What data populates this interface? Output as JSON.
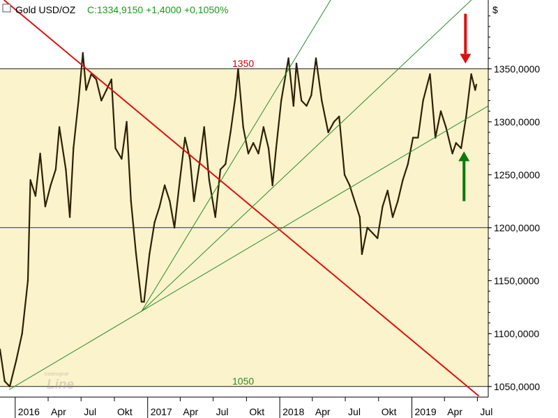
{
  "header": {
    "symbol": "Gold USD/OZ",
    "quote": "C:1334,9150 +1,4000 +0,1050%",
    "currency": "$",
    "logo_text": "Line",
    "logo_small": "tradesignal"
  },
  "chart_data": {
    "type": "line",
    "title": "Gold USD/OZ",
    "y_unit": "$",
    "ylim": [
      1040,
      1415
    ],
    "y_ticks": [
      "1350,0000",
      "1300,0000",
      "1250,0000",
      "1200,0000",
      "1150,0000",
      "1100,0000",
      "1050,0000"
    ],
    "y_tick_values": [
      1350,
      1300,
      1250,
      1200,
      1150,
      1100,
      1050
    ],
    "x_ticks": [
      "2016",
      "Apr",
      "Jul",
      "Okt",
      "2017",
      "Apr",
      "Jul",
      "Okt",
      "2018",
      "Apr",
      "Jul",
      "Okt",
      "2019",
      "Apr",
      "Jul"
    ],
    "x_tick_dates": [
      "2016-01-01",
      "2016-04-01",
      "2016-07-01",
      "2016-10-01",
      "2017-01-01",
      "2017-04-01",
      "2017-07-01",
      "2017-10-01",
      "2018-01-01",
      "2018-04-01",
      "2018-07-01",
      "2018-10-01",
      "2019-01-01",
      "2019-04-01",
      "2019-07-01"
    ],
    "x_range": [
      "2015-11-20",
      "2019-07-31"
    ],
    "band": {
      "low": 1050,
      "high": 1350,
      "color": "#fbf3cc"
    },
    "horizontal_lines": [
      {
        "value": 1350,
        "label": "1350",
        "label_color": "#cc0000"
      },
      {
        "value": 1200,
        "label": "",
        "label_color": "#1f1fa0"
      },
      {
        "value": 1050,
        "label": "1050",
        "label_color": "#2b8a2b"
      }
    ],
    "series": [
      {
        "color": "#2b2000",
        "points": [
          [
            "2015-11-20",
            1085
          ],
          [
            "2015-12-03",
            1055
          ],
          [
            "2015-12-17",
            1050
          ],
          [
            "2016-01-04",
            1075
          ],
          [
            "2016-01-20",
            1100
          ],
          [
            "2016-02-05",
            1150
          ],
          [
            "2016-02-12",
            1245
          ],
          [
            "2016-02-26",
            1230
          ],
          [
            "2016-03-10",
            1270
          ],
          [
            "2016-03-24",
            1220
          ],
          [
            "2016-04-08",
            1240
          ],
          [
            "2016-04-22",
            1255
          ],
          [
            "2016-05-02",
            1295
          ],
          [
            "2016-05-20",
            1255
          ],
          [
            "2016-05-31",
            1210
          ],
          [
            "2016-06-10",
            1275
          ],
          [
            "2016-06-24",
            1320
          ],
          [
            "2016-07-06",
            1365
          ],
          [
            "2016-07-15",
            1330
          ],
          [
            "2016-07-29",
            1345
          ],
          [
            "2016-08-12",
            1340
          ],
          [
            "2016-08-26",
            1320
          ],
          [
            "2016-09-09",
            1330
          ],
          [
            "2016-09-23",
            1340
          ],
          [
            "2016-10-04",
            1275
          ],
          [
            "2016-10-21",
            1265
          ],
          [
            "2016-11-04",
            1300
          ],
          [
            "2016-11-16",
            1225
          ],
          [
            "2016-11-30",
            1175
          ],
          [
            "2016-12-15",
            1130
          ],
          [
            "2016-12-22",
            1130
          ],
          [
            "2017-01-06",
            1175
          ],
          [
            "2017-01-20",
            1205
          ],
          [
            "2017-02-03",
            1220
          ],
          [
            "2017-02-17",
            1240
          ],
          [
            "2017-03-03",
            1225
          ],
          [
            "2017-03-16",
            1200
          ],
          [
            "2017-03-31",
            1245
          ],
          [
            "2017-04-14",
            1285
          ],
          [
            "2017-04-28",
            1265
          ],
          [
            "2017-05-09",
            1225
          ],
          [
            "2017-05-26",
            1265
          ],
          [
            "2017-06-06",
            1295
          ],
          [
            "2017-06-20",
            1245
          ],
          [
            "2017-07-07",
            1210
          ],
          [
            "2017-07-21",
            1255
          ],
          [
            "2017-08-04",
            1260
          ],
          [
            "2017-08-18",
            1290
          ],
          [
            "2017-09-01",
            1325
          ],
          [
            "2017-09-08",
            1350
          ],
          [
            "2017-09-22",
            1295
          ],
          [
            "2017-10-06",
            1270
          ],
          [
            "2017-10-20",
            1280
          ],
          [
            "2017-11-03",
            1270
          ],
          [
            "2017-11-17",
            1295
          ],
          [
            "2017-12-01",
            1275
          ],
          [
            "2017-12-12",
            1240
          ],
          [
            "2017-12-22",
            1275
          ],
          [
            "2018-01-05",
            1320
          ],
          [
            "2018-01-25",
            1360
          ],
          [
            "2018-02-08",
            1315
          ],
          [
            "2018-02-16",
            1355
          ],
          [
            "2018-03-02",
            1320
          ],
          [
            "2018-03-16",
            1315
          ],
          [
            "2018-03-29",
            1325
          ],
          [
            "2018-04-11",
            1360
          ],
          [
            "2018-04-27",
            1320
          ],
          [
            "2018-05-15",
            1290
          ],
          [
            "2018-05-31",
            1300
          ],
          [
            "2018-06-14",
            1305
          ],
          [
            "2018-06-29",
            1250
          ],
          [
            "2018-07-13",
            1240
          ],
          [
            "2018-07-27",
            1225
          ],
          [
            "2018-08-10",
            1210
          ],
          [
            "2018-08-16",
            1175
          ],
          [
            "2018-08-31",
            1200
          ],
          [
            "2018-09-14",
            1195
          ],
          [
            "2018-09-28",
            1190
          ],
          [
            "2018-10-12",
            1220
          ],
          [
            "2018-10-26",
            1235
          ],
          [
            "2018-11-09",
            1210
          ],
          [
            "2018-11-23",
            1225
          ],
          [
            "2018-12-07",
            1245
          ],
          [
            "2018-12-21",
            1260
          ],
          [
            "2019-01-04",
            1285
          ],
          [
            "2019-01-18",
            1285
          ],
          [
            "2019-02-01",
            1320
          ],
          [
            "2019-02-20",
            1345
          ],
          [
            "2019-03-07",
            1285
          ],
          [
            "2019-03-22",
            1310
          ],
          [
            "2019-04-05",
            1295
          ],
          [
            "2019-04-23",
            1270
          ],
          [
            "2019-05-03",
            1280
          ],
          [
            "2019-05-17",
            1275
          ],
          [
            "2019-05-31",
            1305
          ],
          [
            "2019-06-14",
            1345
          ],
          [
            "2019-06-25",
            1330
          ],
          [
            "2019-06-28",
            1335
          ]
        ]
      }
    ],
    "trendlines": [
      {
        "color": "#e01010",
        "width": 2,
        "from": [
          "2015-12-01",
          1415
        ],
        "to": [
          "2019-07-05",
          1041
        ]
      },
      {
        "color": "#2b8a2b",
        "width": 1,
        "from": [
          "2015-12-15",
          1047
        ],
        "to": [
          "2019-07-31",
          1315
        ]
      },
      {
        "color": "#2b8a2b",
        "width": 1,
        "from": [
          "2016-12-15",
          1121
        ],
        "to": [
          "2019-07-31",
          1430
        ]
      },
      {
        "color": "#2b8a2b",
        "width": 1,
        "from": [
          "2016-12-15",
          1121
        ],
        "to": [
          "2019-07-31",
          1660
        ]
      }
    ],
    "arrows": [
      {
        "color": "#e01010",
        "direction": "down",
        "date": "2019-05-29",
        "from_value": 1402,
        "to_value": 1355
      },
      {
        "color": "#0b7a0b",
        "direction": "up",
        "date": "2019-05-25",
        "from_value": 1225,
        "to_value": 1272
      }
    ]
  }
}
